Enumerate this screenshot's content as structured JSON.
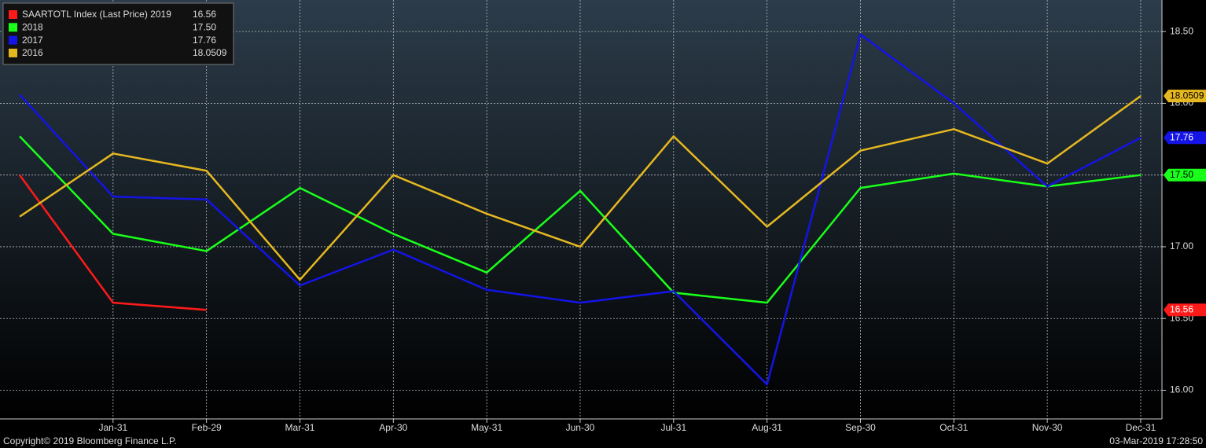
{
  "chart_data": {
    "type": "line",
    "categories": [
      null,
      "Jan-31",
      "Feb-29",
      "Mar-31",
      "Apr-30",
      "May-31",
      "Jun-30",
      "Jul-31",
      "Aug-31",
      "Sep-30",
      "Oct-31",
      "Nov-30",
      "Dec-31"
    ],
    "series": [
      {
        "name": "SAARTOTL Index (Last Price) 2019",
        "color": "#ff1a1a",
        "last_label": "16.56",
        "values": [
          17.5,
          16.61,
          16.56,
          null,
          null,
          null,
          null,
          null,
          null,
          null,
          null,
          null,
          null
        ]
      },
      {
        "name": "2018",
        "color": "#1aff1a",
        "last_label": "17.50",
        "values": [
          17.77,
          17.09,
          16.97,
          17.41,
          17.09,
          16.82,
          17.39,
          16.68,
          16.61,
          17.41,
          17.51,
          17.42,
          17.5
        ]
      },
      {
        "name": "2017",
        "color": "#1414e6",
        "last_label": "17.76",
        "values": [
          18.06,
          17.35,
          17.33,
          16.73,
          16.98,
          16.7,
          16.61,
          16.69,
          16.04,
          18.48,
          18.0,
          17.42,
          17.76
        ]
      },
      {
        "name": "2016",
        "color": "#e6b820",
        "last_label": "18.0509",
        "values": [
          17.21,
          17.65,
          17.53,
          16.77,
          17.5,
          17.23,
          17.0,
          17.77,
          17.14,
          17.67,
          17.82,
          17.58,
          18.0509
        ]
      }
    ],
    "ylim": [
      15.8,
      18.72
    ],
    "yticks": [
      {
        "value": 16,
        "label": "16.00"
      },
      {
        "value": 16.5,
        "label": "16.50"
      },
      {
        "value": 17,
        "label": "17.00"
      },
      {
        "value": 17.5,
        "label": "17.50"
      },
      {
        "value": 18,
        "label": "18.00"
      },
      {
        "value": 18.5,
        "label": "18.50"
      }
    ],
    "grid": true,
    "legend": "top-left"
  },
  "footer": {
    "left": "Copyright© 2019 Bloomberg Finance L.P.",
    "right": "03-Mar-2019 17:28:50"
  }
}
